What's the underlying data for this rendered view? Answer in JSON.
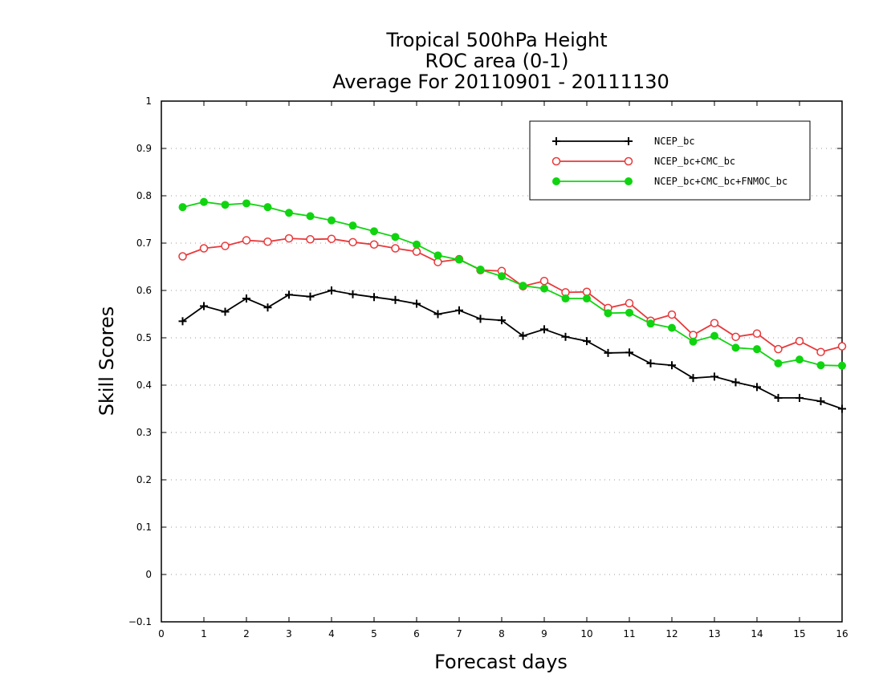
{
  "chart_data": {
    "type": "line",
    "title_lines": [
      "Tropical 500hPa Height",
      "ROC area (0-1)",
      "Average For 20110901 - 20111130"
    ],
    "xlabel": "Forecast days",
    "ylabel": "Skill Scores",
    "xlim": [
      0,
      16
    ],
    "ylim": [
      -0.1,
      1
    ],
    "x_ticks": [
      "0",
      "1",
      "2",
      "3",
      "4",
      "5",
      "6",
      "7",
      "8",
      "9",
      "10",
      "11",
      "12",
      "13",
      "14",
      "15",
      "16"
    ],
    "y_ticks": [
      "−0.1",
      "0",
      "0.1",
      "0.2",
      "0.3",
      "0.4",
      "0.5",
      "0.6",
      "0.7",
      "0.8",
      "0.9",
      "1"
    ],
    "grid": "horizontal dotted",
    "legend_position": "top-right",
    "x": [
      0.5,
      1,
      1.5,
      2,
      2.5,
      3,
      3.5,
      4,
      4.5,
      5,
      5.5,
      6,
      6.5,
      7,
      7.5,
      8,
      8.5,
      9,
      9.5,
      10,
      10.5,
      11,
      11.5,
      12,
      12.5,
      13,
      13.5,
      14,
      14.5,
      15,
      15.5,
      16
    ],
    "series": [
      {
        "name": "NCEP_bc",
        "color": "#000000",
        "marker": "plus",
        "values": [
          0.535,
          0.567,
          0.555,
          0.583,
          0.564,
          0.591,
          0.587,
          0.6,
          0.592,
          0.586,
          0.58,
          0.572,
          0.55,
          0.558,
          0.54,
          0.537,
          0.504,
          0.518,
          0.502,
          0.493,
          0.468,
          0.469,
          0.446,
          0.442,
          0.415,
          0.418,
          0.406,
          0.396,
          0.373,
          0.373,
          0.366,
          0.35
        ]
      },
      {
        "name": "NCEP_bc+CMC_bc",
        "color": "#e8383a",
        "marker": "open-circle",
        "values": [
          0.672,
          0.689,
          0.694,
          0.706,
          0.703,
          0.71,
          0.708,
          0.709,
          0.702,
          0.697,
          0.689,
          0.682,
          0.66,
          0.666,
          0.643,
          0.641,
          0.609,
          0.62,
          0.596,
          0.597,
          0.563,
          0.573,
          0.536,
          0.549,
          0.506,
          0.531,
          0.502,
          0.509,
          0.476,
          0.493,
          0.47,
          0.482
        ]
      },
      {
        "name": "NCEP_bc+CMC_bc+FNMOC_bc",
        "color": "#10d410",
        "marker": "filled-circle",
        "values": [
          0.776,
          0.787,
          0.781,
          0.784,
          0.776,
          0.764,
          0.757,
          0.748,
          0.737,
          0.725,
          0.713,
          0.697,
          0.674,
          0.665,
          0.644,
          0.63,
          0.61,
          0.604,
          0.583,
          0.583,
          0.552,
          0.553,
          0.53,
          0.521,
          0.492,
          0.504,
          0.479,
          0.476,
          0.446,
          0.454,
          0.442,
          0.441
        ]
      }
    ]
  }
}
